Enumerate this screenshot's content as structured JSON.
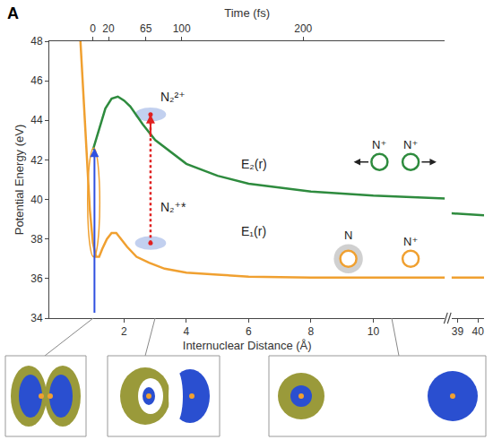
{
  "chart_data": {
    "type": "line",
    "panel_label": "A",
    "x_label": "Internuclear Distance (Å)",
    "y_label": "Potential Energy (eV)",
    "top_axis": {
      "title": "Time (fs)",
      "ticks": [
        {
          "value": 1.0,
          "label": "0"
        },
        {
          "value": 1.5,
          "label": "20"
        },
        {
          "value": 2.7,
          "label": "65"
        },
        {
          "value": 3.85,
          "label": "100"
        },
        {
          "value": 7.75,
          "label": "200"
        }
      ]
    },
    "xlim": [
      -0.4,
      12.3
    ],
    "xticks": [
      2,
      4,
      6,
      8,
      10
    ],
    "x2lim": [
      38.7,
      40.3
    ],
    "x2ticks": [
      39,
      40
    ],
    "ylim": [
      34,
      48
    ],
    "yticks": [
      34,
      36,
      38,
      40,
      42,
      44,
      46,
      48
    ],
    "grid": false,
    "series": [
      {
        "name": "E₁(r)",
        "color": "#f0a030",
        "label_at": [
          5.7,
          38.4
        ],
        "x": [
          0.6,
          0.7,
          0.8,
          0.9,
          1.0,
          1.1,
          1.2,
          1.3,
          1.45,
          1.6,
          1.75,
          1.9,
          2.1,
          2.4,
          2.8,
          3.3,
          4.0,
          5.0,
          6.0,
          8.0,
          10.0,
          12.3
        ],
        "values": [
          48,
          45,
          42,
          39.5,
          37.8,
          37.1,
          37.1,
          37.5,
          38.0,
          38.3,
          38.3,
          38.0,
          37.6,
          37.1,
          36.8,
          36.5,
          36.3,
          36.2,
          36.1,
          36.05,
          36.05,
          36.05
        ],
        "x_break": [
          38.7,
          40.3
        ],
        "values_break": [
          36.05,
          36.05
        ]
      },
      {
        "name": "E₂(r)",
        "color": "#2e8b3e",
        "label_at": [
          5.7,
          41.8
        ],
        "x": [
          1.0,
          1.2,
          1.4,
          1.6,
          1.8,
          2.0,
          2.2,
          2.6,
          3.0,
          4.0,
          5.0,
          6.0,
          8.0,
          10.0,
          12.3
        ],
        "values": [
          42.5,
          43.6,
          44.6,
          45.1,
          45.2,
          45.0,
          44.7,
          43.8,
          43.0,
          41.8,
          41.2,
          40.8,
          40.4,
          40.2,
          40.05
        ],
        "x_break": [
          38.7,
          40.3
        ],
        "values_break": [
          39.3,
          39.2
        ]
      }
    ],
    "annotations": [
      {
        "text": "N₂²⁺",
        "x": 3.1,
        "y": 45.2
      },
      {
        "text": "N₂⁺*",
        "x": 3.1,
        "y": 39.6
      }
    ],
    "fragments": [
      {
        "text": "N⁺",
        "x": 10.2,
        "y": 41.9,
        "color": "#2e8b3e"
      },
      {
        "text": "N⁺",
        "x": 11.2,
        "y": 41.9,
        "color": "#2e8b3e"
      },
      {
        "text": "N",
        "x": 9.2,
        "y": 37.0,
        "color": "#f0a030"
      },
      {
        "text": "N⁺",
        "x": 11.2,
        "y": 37.0,
        "color": "#f0a030"
      }
    ],
    "excitation": {
      "x": 1.05,
      "from": 34.2,
      "to": 42.6,
      "color": "#3050e0"
    },
    "probe": {
      "x": 2.85,
      "from": 37.8,
      "to": 44.3,
      "color": "#e02020"
    }
  }
}
